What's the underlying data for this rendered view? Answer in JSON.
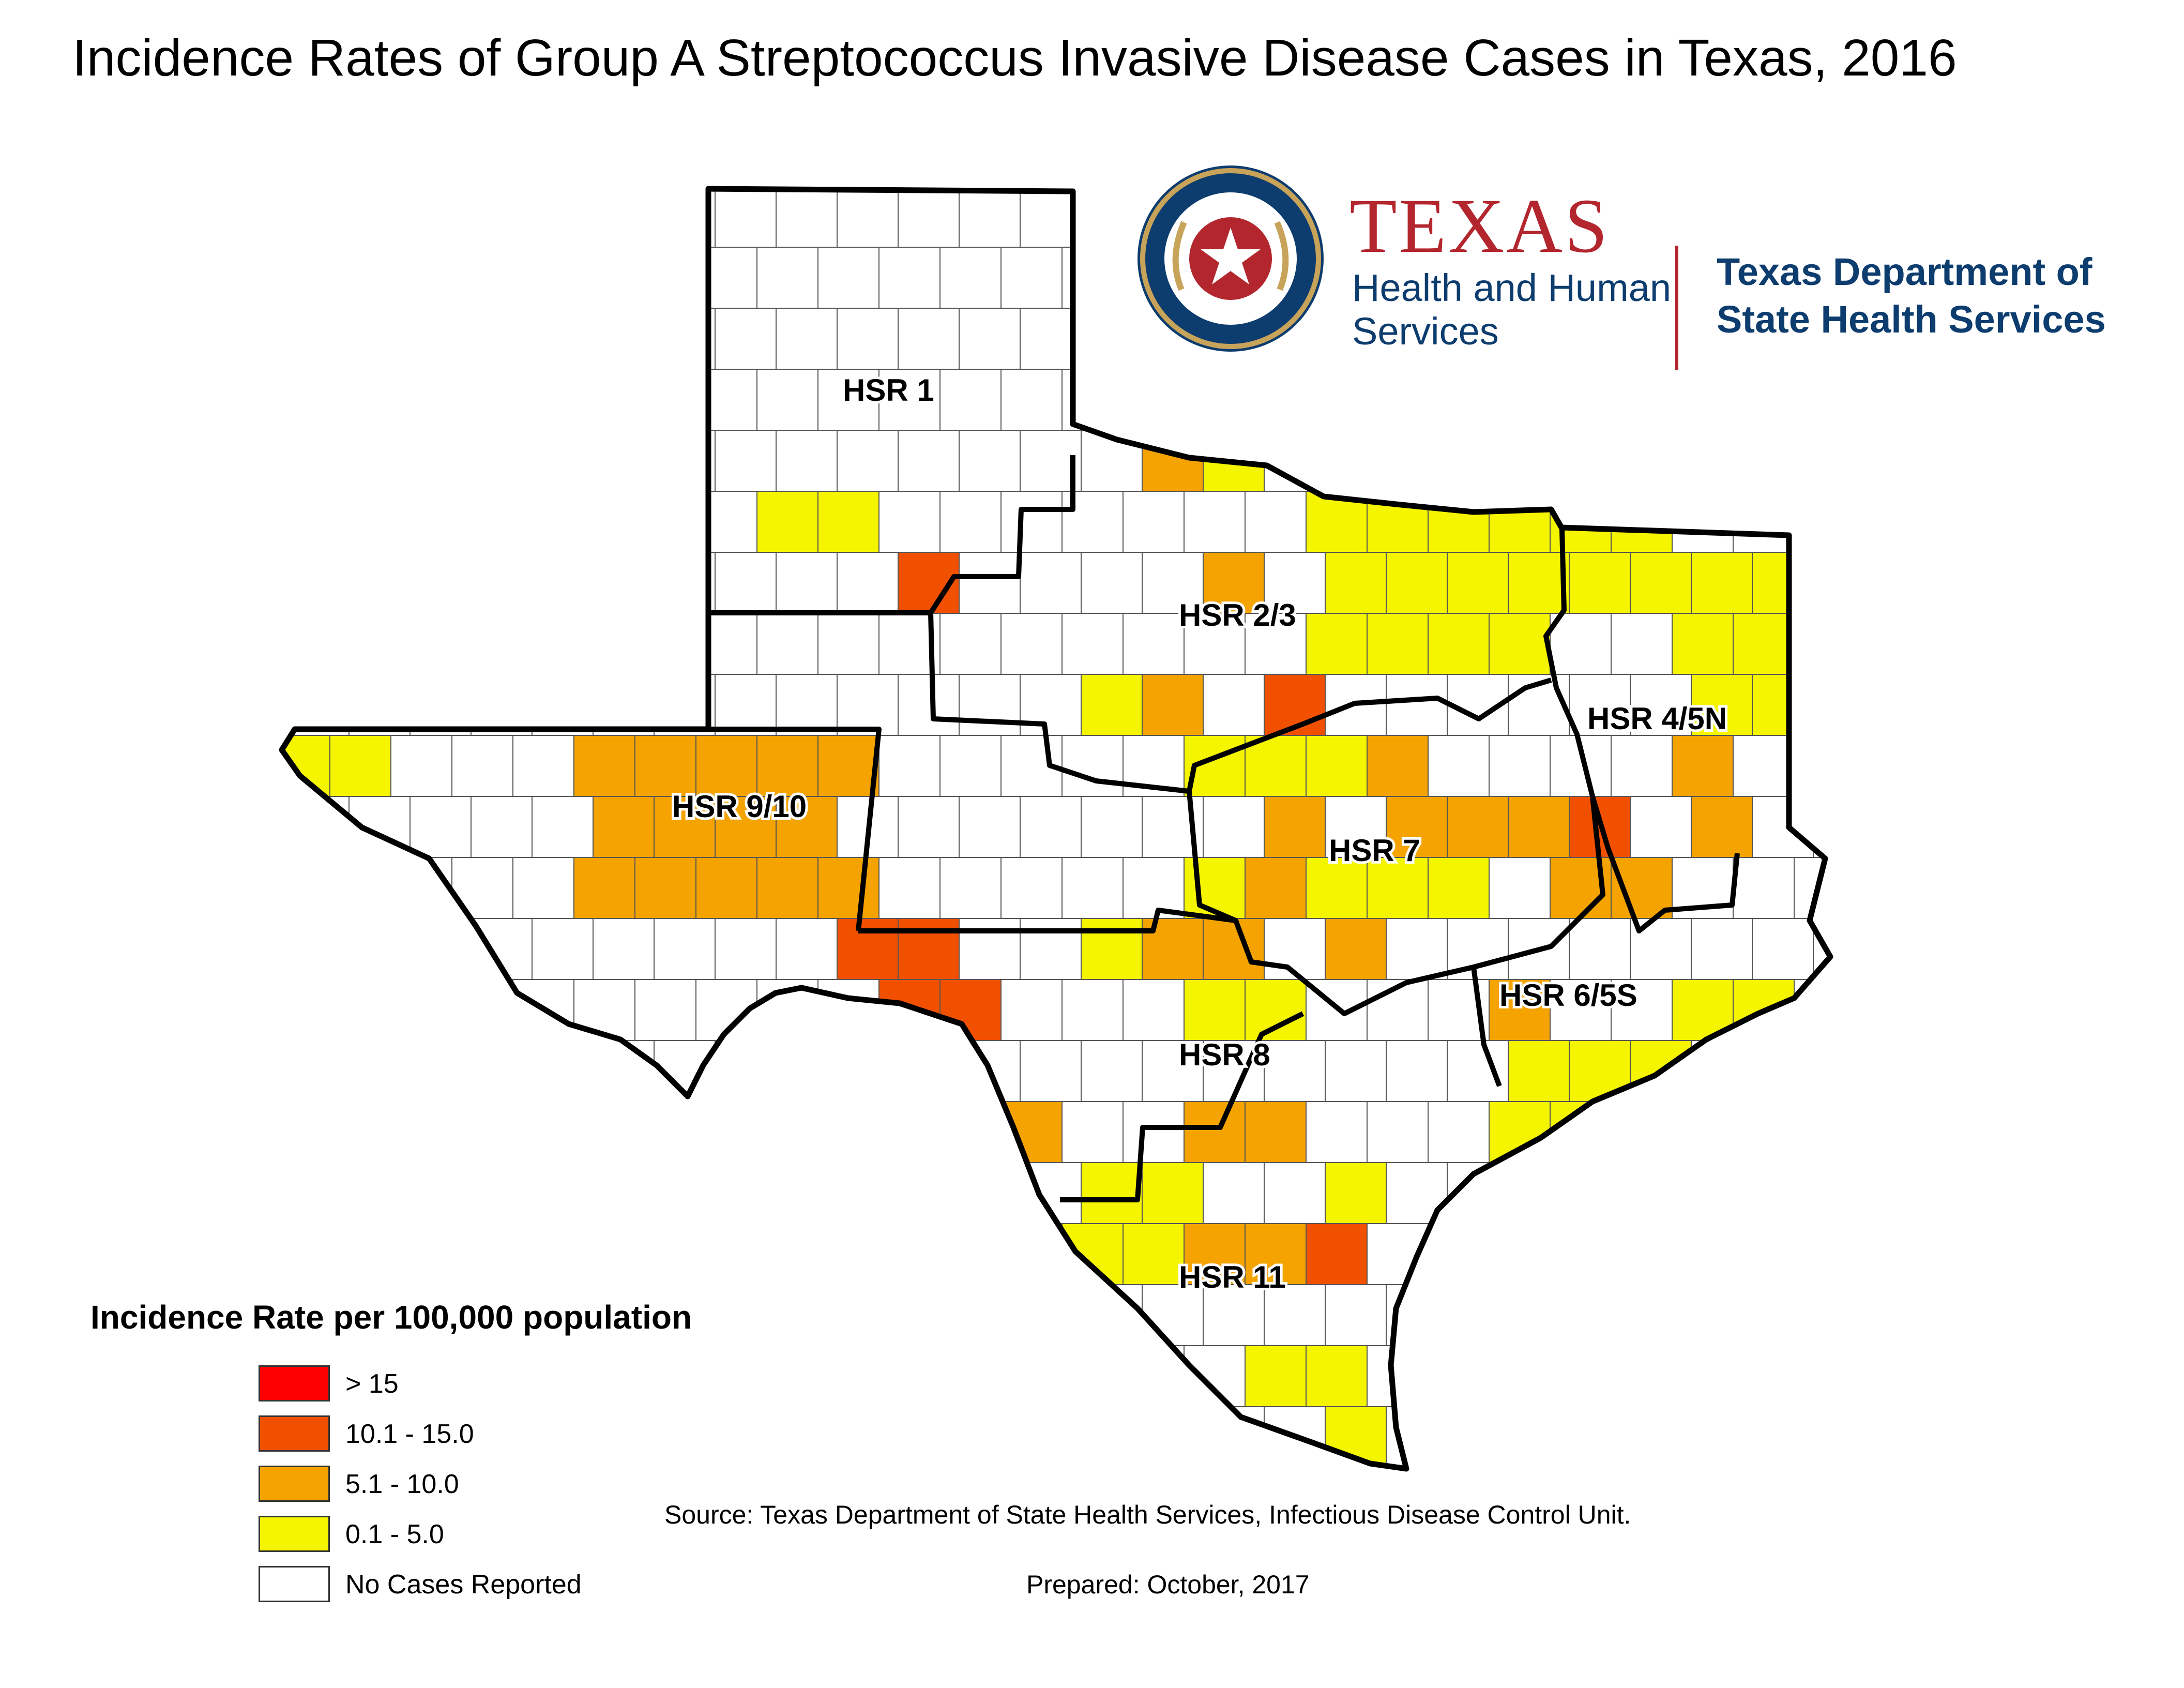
{
  "title": "Incidence Rates  of Group A Streptococcus Invasive Disease Cases in Texas, 2016",
  "logo": {
    "hhs_name": "TEXAS",
    "hhs_sub": "Health and Human Services",
    "dshs_name": "Texas Department of State Health Services",
    "colors": {
      "red": "#b3262e",
      "blue": "#0d3c6e"
    }
  },
  "regions": [
    {
      "id": "hsr-1",
      "label": "HSR 1"
    },
    {
      "id": "hsr-2-3",
      "label": "HSR 2/3"
    },
    {
      "id": "hsr-4-5n",
      "label": "HSR 4/5N"
    },
    {
      "id": "hsr-9-10",
      "label": "HSR 9/10"
    },
    {
      "id": "hsr-7",
      "label": "HSR 7"
    },
    {
      "id": "hsr-6-5s",
      "label": "HSR 6/5S"
    },
    {
      "id": "hsr-8",
      "label": "HSR 8"
    },
    {
      "id": "hsr-11",
      "label": "HSR 11"
    }
  ],
  "legend": {
    "title": "Incidence Rate per 100,000 population",
    "items": [
      {
        "label": "> 15",
        "color": "#ff0000"
      },
      {
        "label": "10.1 - 15.0",
        "color": "#f05000"
      },
      {
        "label": "5.1 - 10.0",
        "color": "#f5a300"
      },
      {
        "label": "0.1 - 5.0",
        "color": "#f5f500"
      },
      {
        "label": "No Cases Reported",
        "color": "#ffffff"
      }
    ]
  },
  "source": "Source: Texas Department of State Health Services, Infectious Disease Control Unit.",
  "prepared": "Prepared: October, 2017"
}
